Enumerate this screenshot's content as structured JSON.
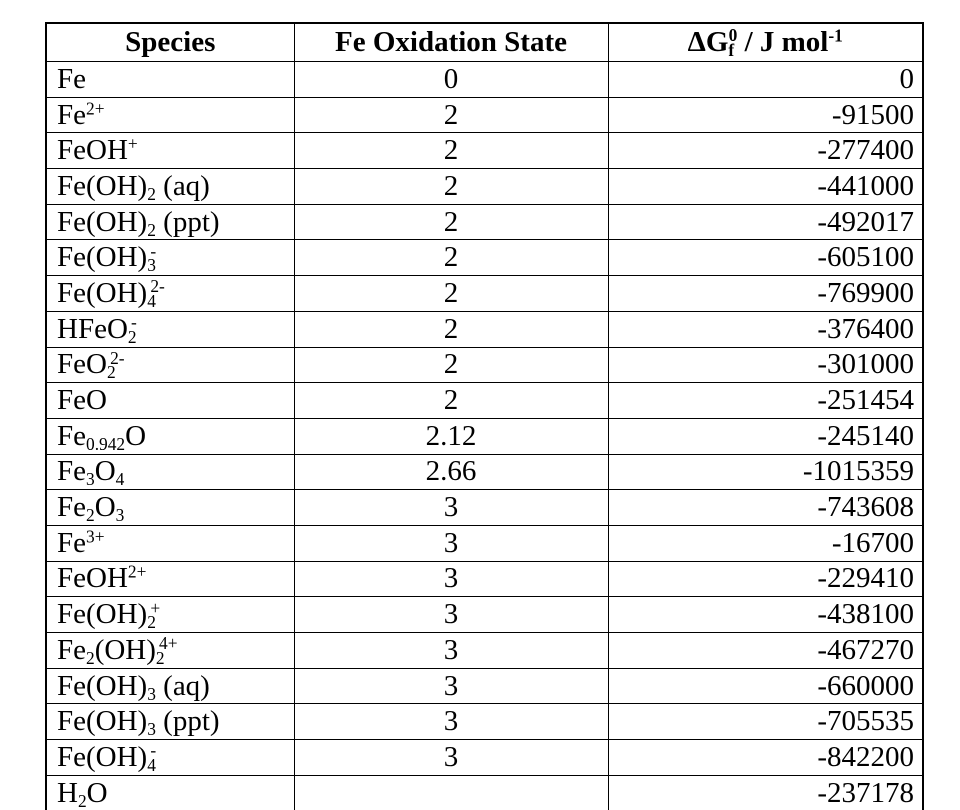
{
  "table": {
    "columns": [
      {
        "key": "species",
        "label": "Species"
      },
      {
        "key": "oxidation",
        "label": "Fe Oxidation State"
      },
      {
        "key": "dg",
        "label": "ΔG_{f}^{0} / J mol^{-1}"
      }
    ],
    "rows": [
      {
        "species": "Fe",
        "oxidation": "0",
        "dg": "0"
      },
      {
        "species": "Fe^{2+}",
        "oxidation": "2",
        "dg": "-91500"
      },
      {
        "species": "FeOH^{+}",
        "oxidation": "2",
        "dg": "-277400"
      },
      {
        "species": "Fe(OH)_{2} (aq)",
        "oxidation": "2",
        "dg": "-441000"
      },
      {
        "species": "Fe(OH)_{2} (ppt)",
        "oxidation": "2",
        "dg": "-492017"
      },
      {
        "species": "Fe(OH)_{3}^{-}",
        "oxidation": "2",
        "dg": "-605100"
      },
      {
        "species": "Fe(OH)_{4}^{2-}",
        "oxidation": "2",
        "dg": "-769900"
      },
      {
        "species": "HFeO_{2}^{-}",
        "oxidation": "2",
        "dg": "-376400"
      },
      {
        "species": "FeO_{2}^{2-}",
        "oxidation": "2",
        "dg": "-301000"
      },
      {
        "species": "FeO",
        "oxidation": "2",
        "dg": "-251454"
      },
      {
        "species": "Fe_{0.942}O",
        "oxidation": "2.12",
        "dg": "-245140"
      },
      {
        "species": "Fe_{3}O_{4}",
        "oxidation": "2.66",
        "dg": "-1015359"
      },
      {
        "species": "Fe_{2}O_{3}",
        "oxidation": "3",
        "dg": "-743608"
      },
      {
        "species": "Fe^{3+}",
        "oxidation": "3",
        "dg": "-16700"
      },
      {
        "species": "FeOH^{2+}",
        "oxidation": "3",
        "dg": "-229410"
      },
      {
        "species": "Fe(OH)_{2}^{+}",
        "oxidation": "3",
        "dg": "-438100"
      },
      {
        "species": "Fe_{2}(OH)_{2}^{4+}",
        "oxidation": "3",
        "dg": "-467270"
      },
      {
        "species": "Fe(OH)_{3} (aq)",
        "oxidation": "3",
        "dg": "-660000"
      },
      {
        "species": "Fe(OH)_{3} (ppt)",
        "oxidation": "3",
        "dg": "-705535"
      },
      {
        "species": "Fe(OH)_{4}^{-}",
        "oxidation": "3",
        "dg": "-842200"
      },
      {
        "species": "H_{2}O",
        "oxidation": "",
        "dg": "-237178"
      }
    ]
  },
  "colors": {
    "border": "#000000",
    "text": "#000000",
    "background": "#ffffff"
  }
}
